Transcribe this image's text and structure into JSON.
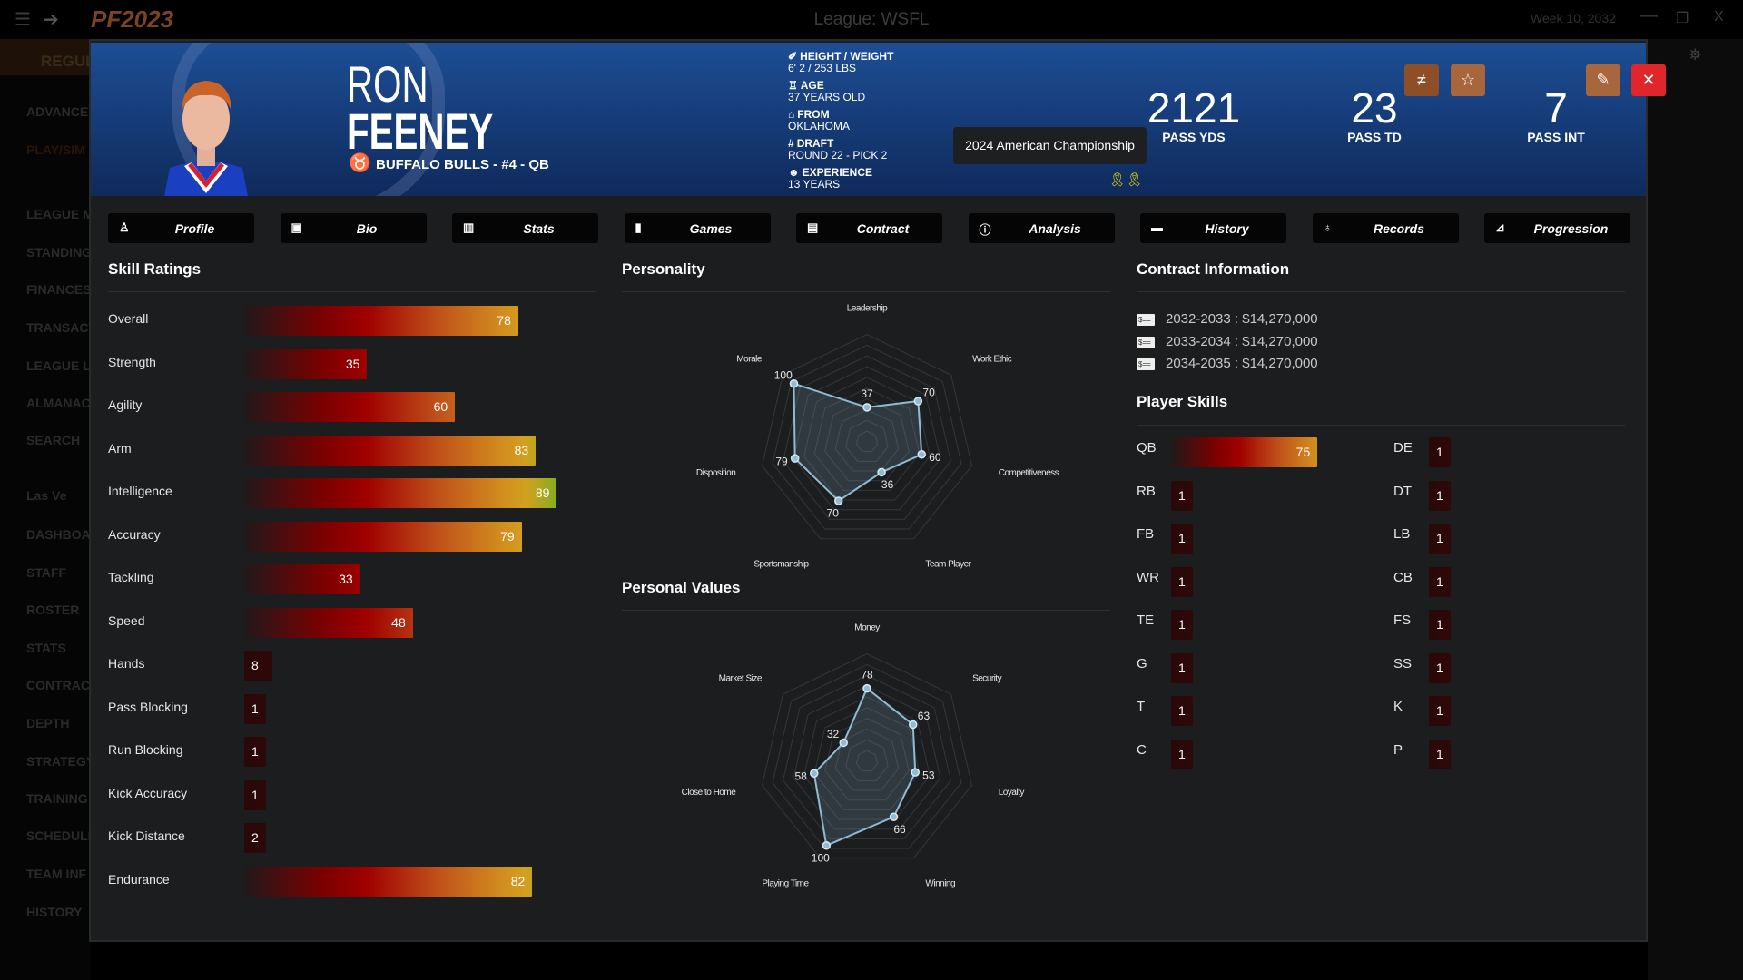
{
  "topbar": {
    "logo": "PF2023",
    "league": "League: WSFL",
    "week": "Week 10, 2032",
    "menu_icon": "hamburger-icon",
    "back_icon": "back-arrow-icon"
  },
  "sidebar": {
    "items": [
      "REGUL",
      "ADVANCE",
      "PLAY/SIM",
      "LEAGUE M",
      "STANDING",
      "FINANCES",
      "TRANSACT",
      "LEAGUE LE",
      "ALMANAC",
      "SEARCH",
      "Las Ve",
      "DASHBOA",
      "STAFF",
      "ROSTER",
      "STATS",
      "CONTRAC",
      "DEPTH",
      "STRATEGY",
      "TRAINING",
      "SCHEDULE",
      "TEAM INF",
      "HISTORY"
    ]
  },
  "header": {
    "first_name": "RON",
    "last_name": "FEENEY",
    "team_line": "BUFFALO BULLS - #4 - QB",
    "info": [
      {
        "label": "HEIGHT / WEIGHT",
        "value": "6' 2 / 253 LBS",
        "icon": "ruler-icon"
      },
      {
        "label": "AGE",
        "value": "37 YEARS OLD",
        "icon": "cake-icon"
      },
      {
        "label": "FROM",
        "value": "OKLAHOMA",
        "icon": "city-icon"
      },
      {
        "label": "DRAFT",
        "value": "ROUND 22 - PICK 2",
        "icon": "hash-icon"
      },
      {
        "label": "EXPERIENCE",
        "value": "13 YEARS",
        "icon": "user-clock-icon"
      }
    ],
    "stats": [
      {
        "value": "2121",
        "label": "PASS YDS"
      },
      {
        "value": "23",
        "label": "PASS TD"
      },
      {
        "value": "7",
        "label": "PASS INT"
      }
    ],
    "tooltip": "2024 American Championship",
    "awards": 2,
    "buttons": {
      "compare": "≠",
      "favorite": "☆",
      "edit": "✎",
      "close": "✕"
    },
    "colors": {
      "compare": "#8e4f28",
      "favorite": "#a8663c",
      "edit": "#a8663c",
      "close": "#e0262b"
    }
  },
  "tabs": [
    {
      "label": "Profile",
      "icon": "profile-icon"
    },
    {
      "label": "Bio",
      "icon": "id-card-icon"
    },
    {
      "label": "Stats",
      "icon": "bar-chart-icon"
    },
    {
      "label": "Games",
      "icon": "clipboard-icon"
    },
    {
      "label": "Contract",
      "icon": "money-bill-icon"
    },
    {
      "label": "Analysis",
      "icon": "info-icon"
    },
    {
      "label": "History",
      "icon": "archive-icon"
    },
    {
      "label": "Records",
      "icon": "award-icon"
    },
    {
      "label": "Progression",
      "icon": "line-chart-icon"
    }
  ],
  "skill_ratings": {
    "title": "Skill Ratings",
    "items": [
      {
        "label": "Overall",
        "value": 78
      },
      {
        "label": "Strength",
        "value": 35
      },
      {
        "label": "Agility",
        "value": 60
      },
      {
        "label": "Arm",
        "value": 83
      },
      {
        "label": "Intelligence",
        "value": 89
      },
      {
        "label": "Accuracy",
        "value": 79
      },
      {
        "label": "Tackling",
        "value": 33
      },
      {
        "label": "Speed",
        "value": 48
      },
      {
        "label": "Hands",
        "value": 8
      },
      {
        "label": "Pass Blocking",
        "value": 1
      },
      {
        "label": "Run Blocking",
        "value": 1
      },
      {
        "label": "Kick Accuracy",
        "value": 1
      },
      {
        "label": "Kick Distance",
        "value": 2
      },
      {
        "label": "Endurance",
        "value": 82
      }
    ]
  },
  "chart_data": [
    {
      "type": "radar",
      "title": "Personality",
      "range": [
        0,
        100
      ],
      "axes": [
        "Leadership",
        "Work Ethic",
        "Competitiveness",
        "Team Player",
        "Sportsmanship",
        "Disposition",
        "Morale"
      ],
      "values": [
        37,
        70,
        60,
        36,
        70,
        79,
        100
      ]
    },
    {
      "type": "radar",
      "title": "Personal Values",
      "range": [
        0,
        100
      ],
      "axes": [
        "Money",
        "Security",
        "Loyalty",
        "Winning",
        "Playing Time",
        "Close to Home",
        "Market Size"
      ],
      "values": [
        78,
        63,
        53,
        66,
        100,
        58,
        32
      ]
    }
  ],
  "contract": {
    "title": "Contract Information",
    "rows": [
      "2032-2033 : $14,270,000",
      "2033-2034 : $14,270,000",
      "2034-2035 : $14,270,000"
    ]
  },
  "player_skills": {
    "title": "Player Skills",
    "left": [
      {
        "label": "QB",
        "value": 75
      },
      {
        "label": "RB",
        "value": 1
      },
      {
        "label": "FB",
        "value": 1
      },
      {
        "label": "WR",
        "value": 1
      },
      {
        "label": "TE",
        "value": 1
      },
      {
        "label": "G",
        "value": 1
      },
      {
        "label": "T",
        "value": 1
      },
      {
        "label": "C",
        "value": 1
      }
    ],
    "right": [
      {
        "label": "DE",
        "value": 1
      },
      {
        "label": "DT",
        "value": 1
      },
      {
        "label": "LB",
        "value": 1
      },
      {
        "label": "CB",
        "value": 1
      },
      {
        "label": "FS",
        "value": 1
      },
      {
        "label": "SS",
        "value": 1
      },
      {
        "label": "K",
        "value": 1
      },
      {
        "label": "P",
        "value": 1
      }
    ]
  },
  "colors": {
    "header_top": "#1d4e95",
    "header_bottom": "#0f2a5c",
    "panel": "#1c1d1f",
    "radar_line": "#8fbcd4",
    "bar_low": "#990000",
    "bar_mid": "#d08a20",
    "bar_high": "#6aae1e"
  }
}
